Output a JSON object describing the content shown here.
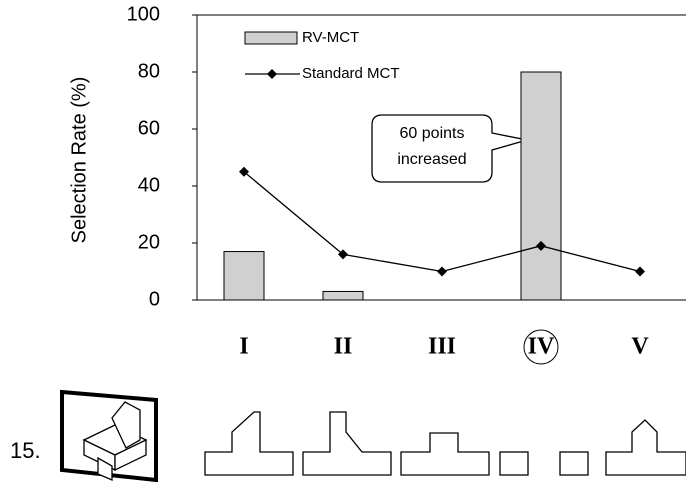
{
  "chart_data": {
    "type": "bar",
    "y_label": "Selection Rate (%)",
    "categories": [
      "I",
      "II",
      "III",
      "IV",
      "V"
    ],
    "series": [
      {
        "name": "RV-MCT",
        "type": "bar",
        "color": "#d0d0d0",
        "values": [
          17,
          3,
          0,
          80,
          0
        ]
      },
      {
        "name": "Standard MCT",
        "type": "line",
        "color": "#000000",
        "values": [
          45,
          16,
          10,
          19,
          10
        ]
      }
    ],
    "ylim": [
      0,
      100
    ],
    "yticks": [
      0,
      20,
      40,
      60,
      80,
      100
    ],
    "grid": false,
    "annotation": [
      "60 points",
      "increased"
    ]
  },
  "figure_label": "15."
}
